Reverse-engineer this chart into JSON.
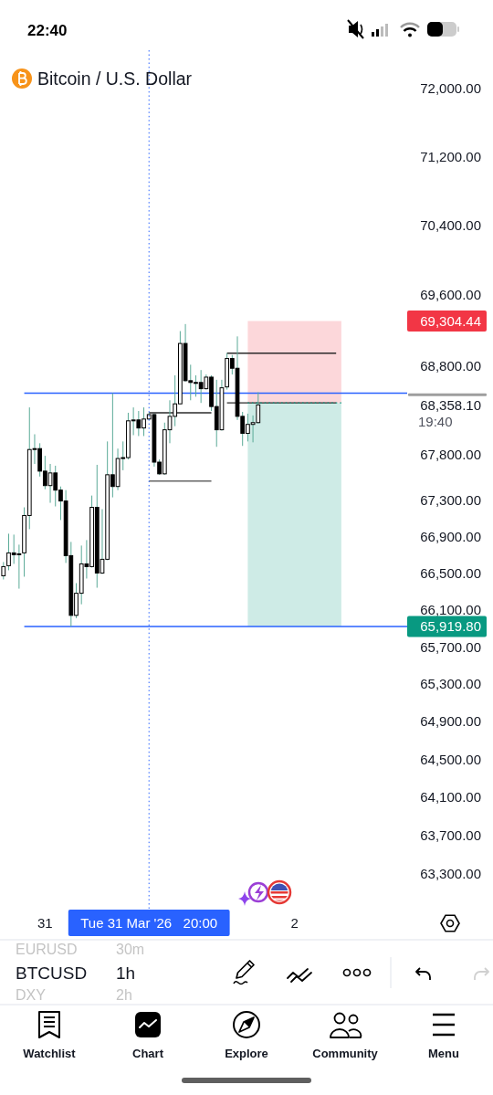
{
  "chart_data": {
    "type": "candlestick",
    "title": "Bitcoin / U.S. Dollar",
    "x": [
      "2026-03-30T16:00",
      "2026-03-30T17:00",
      "2026-03-30T18:00",
      "2026-03-30T19:00",
      "2026-03-30T20:00",
      "2026-03-30T21:00",
      "2026-03-30T22:00",
      "2026-03-30T23:00",
      "2026-03-31T00:00",
      "2026-03-31T01:00",
      "2026-03-31T02:00",
      "2026-03-31T03:00",
      "2026-03-31T04:00",
      "2026-03-31T05:00",
      "2026-03-31T06:00",
      "2026-03-31T07:00",
      "2026-03-31T08:00",
      "2026-03-31T09:00",
      "2026-03-31T10:00",
      "2026-03-31T11:00",
      "2026-03-31T12:00",
      "2026-03-31T13:00",
      "2026-03-31T14:00",
      "2026-03-31T15:00",
      "2026-03-31T16:00",
      "2026-03-31T17:00",
      "2026-03-31T18:00",
      "2026-03-31T19:00",
      "2026-03-31T20:00",
      "2026-03-31T21:00",
      "2026-03-31T22:00",
      "2026-03-31T23:00",
      "2026-04-01T00:00",
      "2026-04-01T01:00",
      "2026-04-01T02:00",
      "2026-04-01T03:00",
      "2026-04-01T04:00",
      "2026-04-01T05:00",
      "2026-04-01T06:00",
      "2026-04-01T07:00",
      "2026-04-01T08:00",
      "2026-04-01T09:00",
      "2026-04-01T10:00",
      "2026-04-01T11:00",
      "2026-04-01T12:00",
      "2026-04-01T13:00",
      "2026-04-01T14:00",
      "2026-04-01T15:00",
      "2026-04-01T16:00",
      "2026-04-01T17:00"
    ],
    "ohlc": [
      [
        66470,
        66620,
        66430,
        66570
      ],
      [
        66580,
        66930,
        66530,
        66720
      ],
      [
        66720,
        66920,
        66600,
        66700
      ],
      [
        66700,
        66810,
        66330,
        66710
      ],
      [
        66720,
        67220,
        66460,
        67130
      ],
      [
        67130,
        68330,
        66980,
        67860
      ],
      [
        67860,
        68030,
        67700,
        67870
      ],
      [
        67870,
        67930,
        67560,
        67620
      ],
      [
        67620,
        67790,
        67420,
        67460
      ],
      [
        67460,
        67700,
        67270,
        67600
      ],
      [
        67600,
        67680,
        67230,
        67410
      ],
      [
        67410,
        67450,
        67080,
        67290
      ],
      [
        67290,
        67410,
        66610,
        66690
      ],
      [
        66690,
        66840,
        65920,
        66040
      ],
      [
        66040,
        66390,
        66010,
        66280
      ],
      [
        66280,
        66800,
        66160,
        66600
      ],
      [
        66600,
        66860,
        66440,
        66570
      ],
      [
        66570,
        67350,
        66560,
        67220
      ],
      [
        67220,
        67690,
        66340,
        66500
      ],
      [
        66500,
        67200,
        66490,
        66650
      ],
      [
        66650,
        67950,
        66640,
        67580
      ],
      [
        67580,
        68490,
        67330,
        67450
      ],
      [
        67450,
        67870,
        67410,
        67760
      ],
      [
        67760,
        67950,
        67630,
        67770
      ],
      [
        67770,
        68270,
        67750,
        68180
      ],
      [
        68180,
        68330,
        68020,
        68190
      ],
      [
        68190,
        68290,
        68010,
        68100
      ],
      [
        68100,
        68330,
        68010,
        68200
      ],
      [
        68200,
        68270,
        68190,
        68250
      ],
      [
        68250,
        68260,
        67670,
        67720
      ],
      [
        67720,
        67750,
        67580,
        67590
      ],
      [
        67590,
        68160,
        67580,
        68080
      ],
      [
        68080,
        68410,
        67930,
        68230
      ],
      [
        68230,
        68690,
        68120,
        68370
      ],
      [
        68370,
        69190,
        68370,
        69050
      ],
      [
        69050,
        69270,
        68620,
        68630
      ],
      [
        68630,
        68810,
        68410,
        68610
      ],
      [
        68610,
        68690,
        68450,
        68600
      ],
      [
        68610,
        68750,
        68380,
        68540
      ],
      [
        68540,
        68700,
        68530,
        68670
      ],
      [
        68670,
        68690,
        68290,
        68340
      ],
      [
        68340,
        68640,
        67890,
        68080
      ],
      [
        68080,
        68640,
        68070,
        68550
      ],
      [
        68560,
        68940,
        68530,
        68880
      ],
      [
        68880,
        68920,
        68700,
        68770
      ],
      [
        68770,
        69130,
        68190,
        68230
      ],
      [
        68230,
        68280,
        67900,
        68040
      ],
      [
        68040,
        68260,
        67950,
        68140
      ],
      [
        68140,
        68240,
        67940,
        68160
      ],
      [
        68160,
        68500,
        68150,
        68358.1
      ]
    ],
    "colors": [
      "#ffffff",
      "#ffffff",
      "#000000",
      "#ffffff",
      "#ffffff",
      "#ffffff",
      "#ffffff",
      "#000000",
      "#000000",
      "#ffffff",
      "#000000",
      "#000000",
      "#000000",
      "#000000",
      "#ffffff",
      "#ffffff",
      "#000000",
      "#ffffff",
      "#000000",
      "#ffffff",
      "#ffffff",
      "#000000",
      "#ffffff",
      "#ffffff",
      "#ffffff",
      "#ffffff",
      "#000000",
      "#ffffff",
      "#ffffff",
      "#000000",
      "#000000",
      "#ffffff",
      "#ffffff",
      "#ffffff",
      "#ffffff",
      "#000000",
      "#000000",
      "#000000",
      "#000000",
      "#ffffff",
      "#000000",
      "#000000",
      "#ffffff",
      "#ffffff",
      "#000000",
      "#000000",
      "#000000",
      "#ffffff",
      "#ffffff",
      "#ffffff"
    ],
    "series": [
      {
        "type": "line",
        "x": [
          "2026-04-01T15:00",
          "2026-04-02T09:00"
        ],
        "values": [
          null,
          null
        ],
        "lower": [
          68380,
          68380
        ],
        "upper": [
          69304.44,
          69304.44
        ],
        "color": "#f23645"
      },
      {
        "type": "line",
        "x": [
          "2026-04-01T15:00",
          "2026-04-02T09:00"
        ],
        "values": [
          68380,
          68380
        ],
        "lower": [
          65919.8,
          65919.8
        ],
        "upper": [
          68380,
          68380
        ],
        "color": "#089981",
        "line_style": "dotted"
      },
      {
        "type": "line",
        "x": [
          "2026-03-30T20:00",
          "2026-04-02T21:40"
        ],
        "values": [
          68490,
          68490
        ],
        "color": "#2962ff"
      },
      {
        "type": "line",
        "x": [
          "2026-03-30T20:00",
          "2026-04-02T21:40"
        ],
        "values": [
          65919.8,
          65919.8
        ],
        "color": "#2962ff"
      },
      {
        "type": "line",
        "x": [
          "2026-04-01T11:00",
          "2026-04-02T08:00"
        ],
        "values": [
          68940,
          68940
        ],
        "color": "#2b2b2b"
      },
      {
        "type": "line",
        "x": [
          "2026-04-01T11:00",
          "2026-04-02T08:00"
        ],
        "values": [
          68380,
          68380
        ],
        "color": "#2b2b2b"
      },
      {
        "type": "line",
        "x": [
          "2026-03-31T20:00",
          "2026-04-01T08:00"
        ],
        "values": [
          68270,
          68270
        ],
        "color": "#2b2b2b"
      },
      {
        "type": "line",
        "x": [
          "2026-03-31T20:00",
          "2026-04-01T08:00"
        ],
        "values": [
          67510,
          67510
        ],
        "color": "#666666"
      }
    ],
    "xlim": [
      "2026-03-30T15:20",
      "2026-04-02T21:40"
    ],
    "xticks": [
      {
        "value": "2026-03-31T00:00",
        "label": "31"
      },
      {
        "value": "2026-04-02T00:00",
        "label": "2"
      }
    ],
    "ylim": [
      62940,
      72450
    ],
    "log": true,
    "yticks": [
      {
        "value": 63300,
        "label": "63,300.00"
      },
      {
        "value": 63700,
        "label": "63,700.00"
      },
      {
        "value": 64100,
        "label": "64,100.00"
      },
      {
        "value": 64500,
        "label": "64,500.00"
      },
      {
        "value": 64900,
        "label": "64,900.00"
      },
      {
        "value": 65300,
        "label": "65,300.00"
      },
      {
        "value": 65700,
        "label": "65,700.00"
      },
      {
        "value": 65919.8,
        "label": "65,919.80"
      },
      {
        "value": 66100,
        "label": "66,100.00"
      },
      {
        "value": 66500,
        "label": "66,500.00"
      },
      {
        "value": 66900,
        "label": "66,900.00"
      },
      {
        "value": 67300,
        "label": "67,300.00"
      },
      {
        "value": 67800,
        "label": "67,800.00"
      },
      {
        "value": 68358.1,
        "label": "68,358.10"
      },
      {
        "value": 68800,
        "label": "68,800.00"
      },
      {
        "value": 69304.44,
        "label": "69,304.44"
      },
      {
        "value": 69600,
        "label": "69,600.00"
      },
      {
        "value": 70400,
        "label": "70,400.00"
      },
      {
        "value": 71200,
        "label": "71,200.00"
      },
      {
        "value": 72000,
        "label": "72,000.00"
      }
    ],
    "ref_lines": [
      {
        "axis": "x",
        "value": "2026-03-31T20:00",
        "label": "Tue 31 Mar '26   20:00",
        "color": "#2962ff",
        "line_style": "dotted"
      }
    ],
    "annotations": [
      "19:40",
      "22:40",
      "EURUSD",
      "30m",
      "BTCUSD",
      "1h",
      "DXY",
      "2h",
      "Watchlist",
      "Chart",
      "Explore",
      "Community",
      "Menu"
    ]
  }
}
